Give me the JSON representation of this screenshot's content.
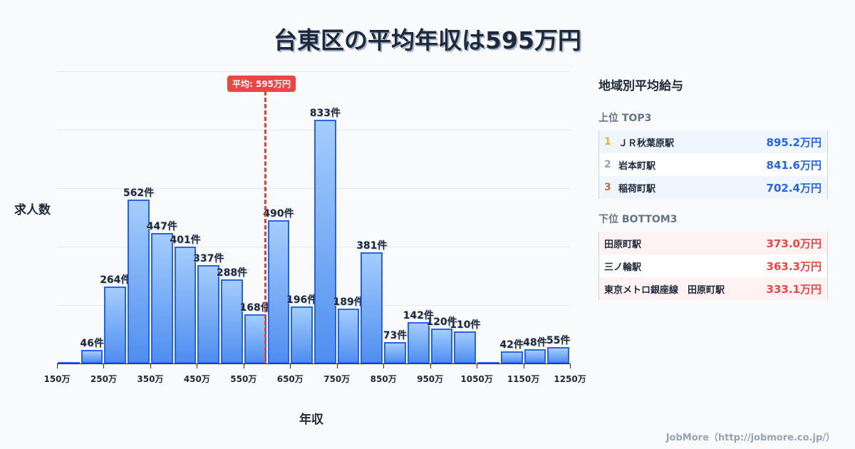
{
  "header": {
    "title": "台東区の平均年収は595万円"
  },
  "chart": {
    "ylabel": "求人数",
    "xlabel": "年収",
    "avg_badge": "平均: 595万円",
    "unit": "件",
    "tick_labels": [
      "150万",
      "250万",
      "350万",
      "450万",
      "550万",
      "650万",
      "750万",
      "850万",
      "950万",
      "1050万",
      "1150万",
      "1250万"
    ]
  },
  "chart_data": {
    "type": "bar",
    "title": "台東区の平均年収は595万円",
    "xlabel": "年収",
    "ylabel": "求人数",
    "categories": [
      "150万",
      "200万",
      "250万",
      "300万",
      "350万",
      "400万",
      "450万",
      "500万",
      "550万",
      "600万",
      "650万",
      "700万",
      "750万",
      "800万",
      "850万",
      "900万",
      "950万",
      "1000万",
      "1050万",
      "1100万",
      "1150万",
      "1200万"
    ],
    "values": [
      0,
      46,
      264,
      562,
      447,
      401,
      337,
      288,
      168,
      490,
      196,
      833,
      189,
      381,
      73,
      142,
      120,
      110,
      0,
      42,
      48,
      55
    ],
    "value_labels": [
      "",
      "46件",
      "264件",
      "562件",
      "447件",
      "401件",
      "337件",
      "288件",
      "168件",
      "490件",
      "196件",
      "833件",
      "189件",
      "381件",
      "73件",
      "142件",
      "120件",
      "110件",
      "",
      "42件",
      "48件",
      "55件"
    ],
    "ylim": [
      0,
      1000
    ],
    "grid": true,
    "annotations": [
      {
        "type": "vline",
        "x": "595万",
        "label": "平均: 595万円",
        "color": "#ef4444"
      }
    ],
    "bar_color": "#2563eb"
  },
  "panel": {
    "title": "地域別平均給与",
    "top_title": "上位 TOP3",
    "bottom_title": "下位 BOTTOM3",
    "top": [
      {
        "rank": "1",
        "name": "ＪＲ秋葉原駅",
        "value": "895.2万円",
        "rank_color": "#eab308"
      },
      {
        "rank": "2",
        "name": "岩本町駅",
        "value": "841.6万円",
        "rank_color": "#94a3b8"
      },
      {
        "rank": "3",
        "name": "稲荷町駅",
        "value": "702.4万円",
        "rank_color": "#c2703d"
      }
    ],
    "bottom": [
      {
        "name": "田原町駅",
        "value": "373.0万円"
      },
      {
        "name": "三ノ輪駅",
        "value": "363.3万円"
      },
      {
        "name": "東京メトロ銀座線　田原町駅",
        "value": "333.1万円"
      }
    ]
  },
  "footer": {
    "credit": "JobMore（http://jobmore.co.jp/）"
  }
}
